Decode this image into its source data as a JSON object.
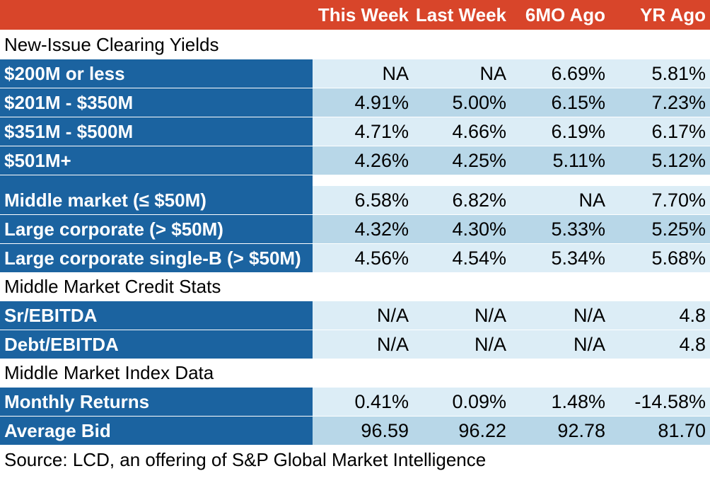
{
  "header": {
    "col1": "This Week",
    "col2": "Last Week",
    "col3": "6MO Ago",
    "col4": "YR Ago"
  },
  "sections": {
    "clearing_yields": "New-Issue Clearing Yields",
    "credit_stats": "Middle Market Credit Stats",
    "index_data": "Middle Market Index Data"
  },
  "yields_by_size": [
    {
      "label": "$200M or less",
      "values": [
        "NA",
        "NA",
        "6.69%",
        "5.81%"
      ]
    },
    {
      "label": "$201M - $350M",
      "values": [
        "4.91%",
        "5.00%",
        "6.15%",
        "7.23%"
      ]
    },
    {
      "label": "$351M - $500M",
      "values": [
        "4.71%",
        "4.66%",
        "6.19%",
        "6.17%"
      ]
    },
    {
      "label": "$501M+",
      "values": [
        "4.26%",
        "4.25%",
        "5.11%",
        "5.12%"
      ]
    }
  ],
  "yields_by_segment": [
    {
      "label": "Middle market (≤ $50M)",
      "values": [
        "6.58%",
        "6.82%",
        "NA",
        "7.70%"
      ]
    },
    {
      "label": "Large corporate (> $50M)",
      "values": [
        "4.32%",
        "4.30%",
        "5.33%",
        "5.25%"
      ]
    },
    {
      "label": "Large corporate single-B (> $50M)",
      "values": [
        "4.56%",
        "4.54%",
        "5.34%",
        "5.68%"
      ]
    }
  ],
  "credit_stats": [
    {
      "label": "Sr/EBITDA",
      "values": [
        "N/A",
        "N/A",
        "N/A",
        "4.8"
      ]
    },
    {
      "label": "Debt/EBITDA",
      "values": [
        "N/A",
        "N/A",
        "N/A",
        "4.8"
      ]
    }
  ],
  "index_data": [
    {
      "label": "Monthly Returns",
      "values": [
        "0.41%",
        "0.09%",
        "1.48%",
        "-14.58%"
      ]
    },
    {
      "label": "Average Bid",
      "values": [
        "96.59",
        "96.22",
        "92.78",
        "81.70"
      ]
    }
  ],
  "source": "Source: LCD, an offering of S&P Global Market Intelligence",
  "colors": {
    "header_bg": "#d8452a",
    "label_bg": "#1b63a0",
    "row_light": "#dcedf6",
    "row_dark": "#b8d7e8"
  }
}
